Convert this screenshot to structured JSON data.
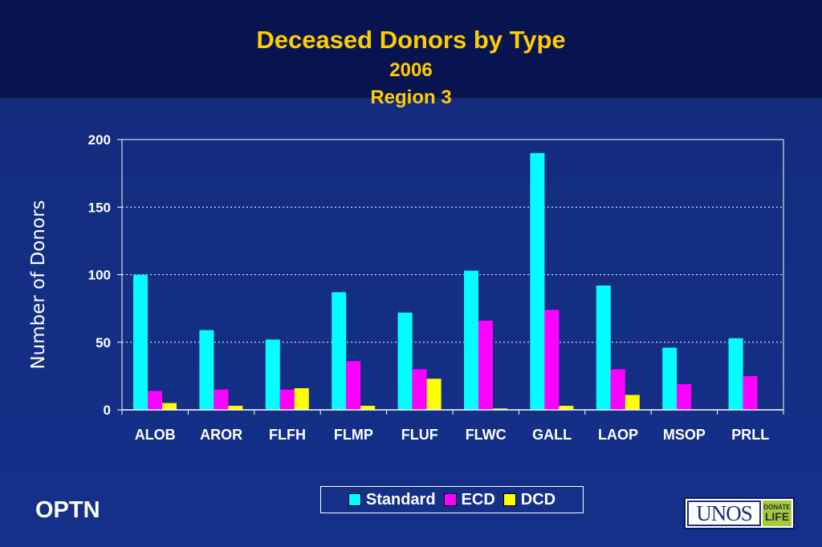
{
  "slide": {
    "title": "Deceased Donors by Type",
    "subtitle_year": "2006",
    "subtitle_region": "Region 3",
    "footer_left": "OPTN",
    "logo_text": "UNOS",
    "logo_badge_top": "DONATE",
    "logo_badge_bottom": "LIFE"
  },
  "colors": {
    "standard": "#00ffff",
    "ecd": "#ff00ff",
    "dcd": "#ffff00",
    "title": "#ffcc00",
    "plot_background": "#14308a"
  },
  "chart_data": {
    "type": "bar",
    "title": "Deceased Donors by Type",
    "ylabel": "Number of Donors",
    "xlabel": "",
    "categories": [
      "ALOB",
      "AROR",
      "FLFH",
      "FLMP",
      "FLUF",
      "FLWC",
      "GALL",
      "LAOP",
      "MSOP",
      "PRLL"
    ],
    "series": [
      {
        "name": "Standard",
        "values": [
          100,
          59,
          52,
          87,
          72,
          103,
          190,
          92,
          46,
          53
        ]
      },
      {
        "name": "ECD",
        "values": [
          14,
          15,
          15,
          36,
          30,
          66,
          74,
          30,
          19,
          25
        ]
      },
      {
        "name": "DCD",
        "values": [
          5,
          3,
          16,
          3,
          23,
          1,
          3,
          11,
          0,
          0
        ]
      }
    ],
    "ylim": [
      0,
      200
    ],
    "yticks": [
      0,
      50,
      100,
      150,
      200
    ],
    "grid": true,
    "legend_position": "bottom"
  }
}
